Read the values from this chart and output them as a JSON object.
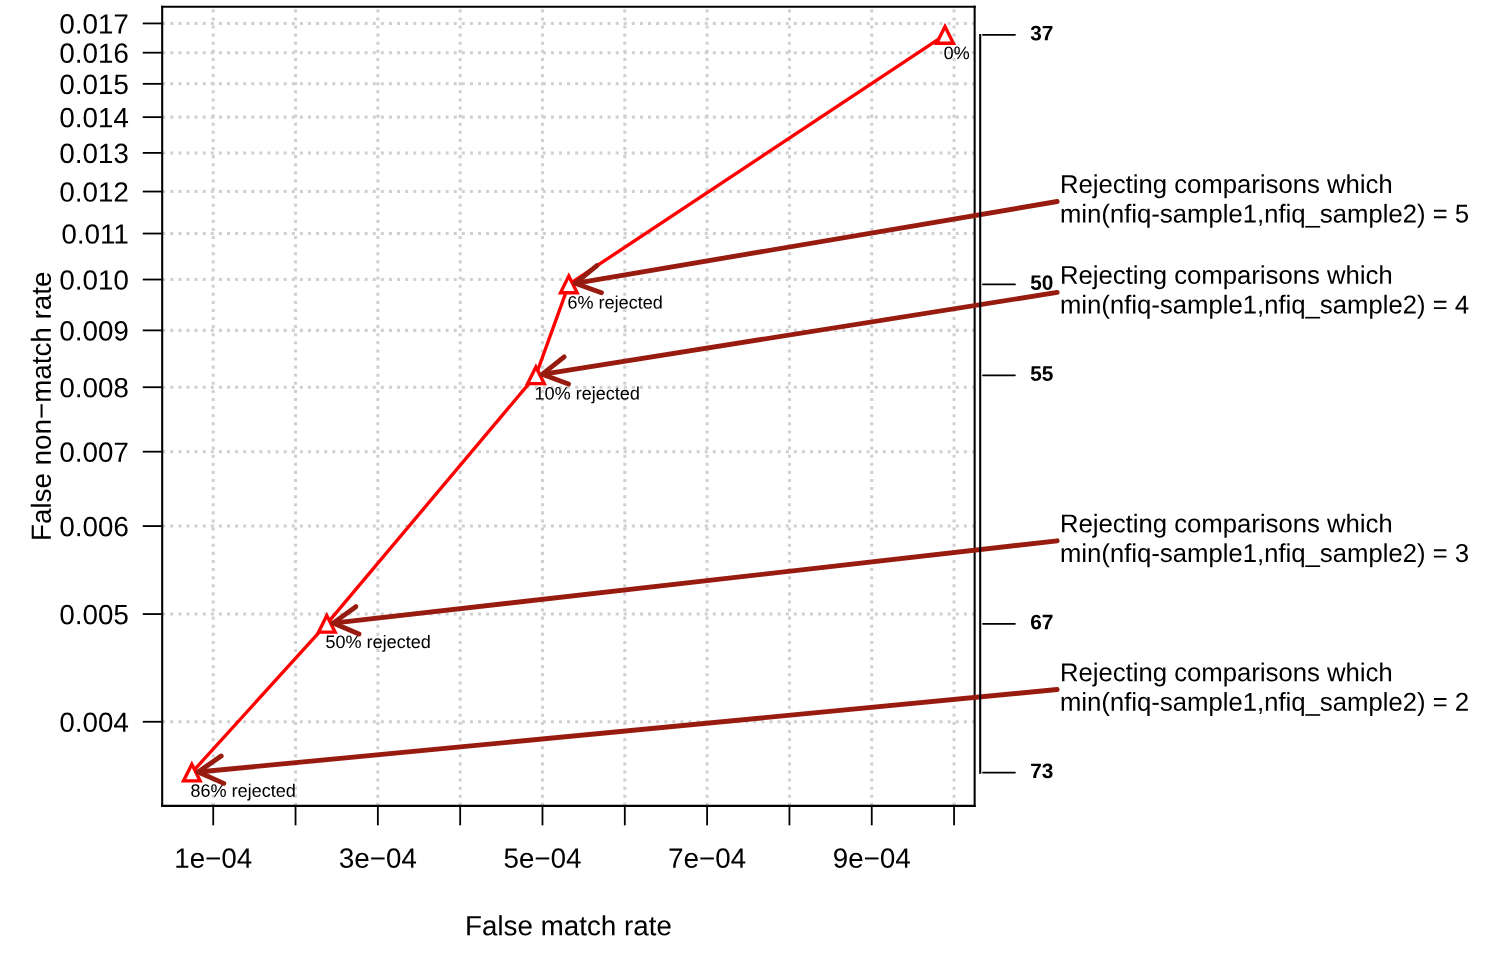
{
  "chart_data": {
    "type": "line",
    "xlabel": "False match rate",
    "ylabel": "False non−match rate",
    "x": [
      7.4e-05,
      0.000238,
      0.000492,
      0.000532,
      0.000989
    ],
    "values": [
      0.0036,
      0.0049,
      0.0082,
      0.0099,
      0.0166
    ],
    "color": "#ff0000",
    "marker": "triangle",
    "line_style": "solid",
    "log": "y",
    "grid": true,
    "xlim": [
      3.8e-05,
      0.001025
    ],
    "xticks": [
      {
        "value": 0.0001,
        "label": "1e−04"
      },
      {
        "value": 0.0002,
        "label": null
      },
      {
        "value": 0.0003,
        "label": "3e−04"
      },
      {
        "value": 0.0004,
        "label": null
      },
      {
        "value": 0.0005,
        "label": "5e−04"
      },
      {
        "value": 0.0006,
        "label": null
      },
      {
        "value": 0.0007,
        "label": "7e−04"
      },
      {
        "value": 0.0008,
        "label": null
      },
      {
        "value": 0.0009,
        "label": "9e−04"
      },
      {
        "value": 0.001,
        "label": null
      }
    ],
    "ylim": [
      0.00336,
      0.0176
    ],
    "yticks": [
      0.004,
      0.005,
      0.006,
      0.007,
      0.008,
      0.009,
      {
        "value": 0.01,
        "label": "0.010"
      },
      0.011,
      0.012,
      0.013,
      0.014,
      0.015,
      0.016,
      0.017
    ],
    "annotations": [
      {
        "text": "0%",
        "x": 0.000989,
        "y": 0.0166
      },
      {
        "text": "6% rejected",
        "x": 0.000532,
        "y": 0.0099
      },
      {
        "text": "10% rejected",
        "x": 0.000492,
        "y": 0.0082
      },
      {
        "text": "50% rejected",
        "x": 0.000238,
        "y": 0.0049
      },
      {
        "text": "86% rejected",
        "x": 7.4e-05,
        "y": 0.0036
      },
      "73",
      "67",
      "55",
      "50",
      "37",
      {
        "text": "Rejecting comparisons which\nmin(nfiq-sample1,nfiq_sample2) = 5",
        "x": 0.000532,
        "y": 0.0099
      },
      {
        "text": "Rejecting comparisons which\nmin(nfiq-sample1,nfiq_sample2) = 4",
        "x": 0.000492,
        "y": 0.0082
      },
      {
        "text": "Rejecting comparisons which\nmin(nfiq-sample1,nfiq_sample2) = 3",
        "x": 0.000238,
        "y": 0.0049
      },
      {
        "text": "Rejecting comparisons which\nmin(nfiq-sample1,nfiq_sample2) = 2",
        "x": 7.4e-05,
        "y": 0.0036
      }
    ]
  }
}
